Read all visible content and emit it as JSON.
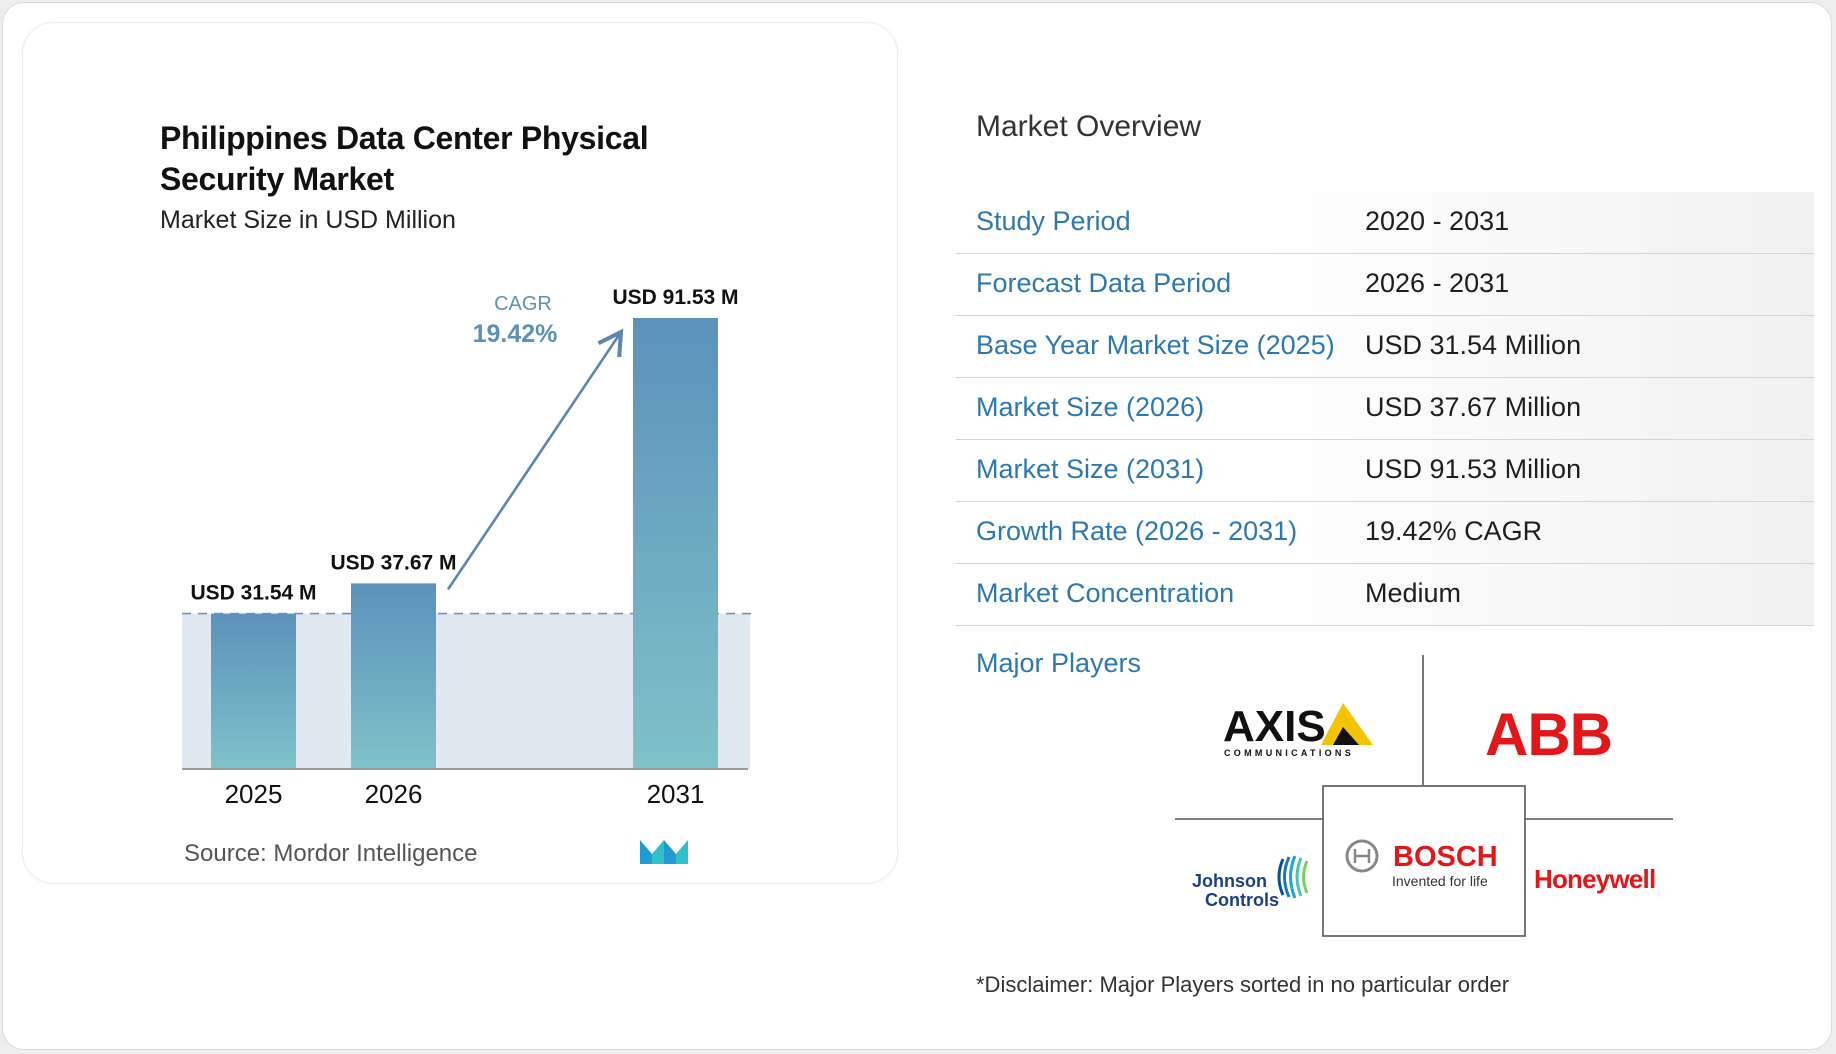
{
  "chart_data": {
    "type": "bar",
    "title": "Philippines Data Center Physical Security Market",
    "subtitle": "Market Size in USD Million",
    "categories": [
      "2025",
      "2026",
      "2031"
    ],
    "values": [
      31.54,
      37.67,
      91.53
    ],
    "data_labels": [
      "USD 31.54 M",
      "USD 37.67 M",
      "USD 91.53 M"
    ],
    "baseline_value": 31.54,
    "annotation": {
      "label": "CAGR",
      "value": "19.42%"
    },
    "colors": {
      "bar_top": "#5b92bb",
      "bar_bottom": "#7ec2c8",
      "band": "#dde6ef",
      "arrow": "#5b86ad",
      "cagr": "#5c91b5"
    },
    "grid": false,
    "legend": "none"
  },
  "source": {
    "label": "Source:",
    "value": "Mordor Intelligence"
  },
  "overview": {
    "title": "Market Overview",
    "rows": [
      {
        "label": "Study Period",
        "value": "2020 - 2031"
      },
      {
        "label": "Forecast Data Period",
        "value": "2026 - 2031"
      },
      {
        "label": "Base Year Market Size (2025)",
        "value": "USD 31.54 Million"
      },
      {
        "label": "Market Size (2026)",
        "value": "USD 37.67 Million"
      },
      {
        "label": "Market Size (2031)",
        "value": "USD 91.53 Million"
      },
      {
        "label": "Growth Rate (2026 - 2031)",
        "value": "19.42% CAGR"
      },
      {
        "label": "Market Concentration",
        "value": "Medium"
      }
    ]
  },
  "major_players": {
    "label": "Major Players",
    "logos": {
      "axis": {
        "name": "AXIS",
        "sub": "COMMUNICATIONS"
      },
      "abb": {
        "name": "ABB"
      },
      "bosch": {
        "name": "BOSCH",
        "sub": "Invented for life"
      },
      "johnson": {
        "line1": "Johnson",
        "line2": "Controls"
      },
      "honeywell": {
        "name": "Honeywell"
      }
    },
    "disclaimer": "*Disclaimer: Major Players sorted in no particular order"
  }
}
